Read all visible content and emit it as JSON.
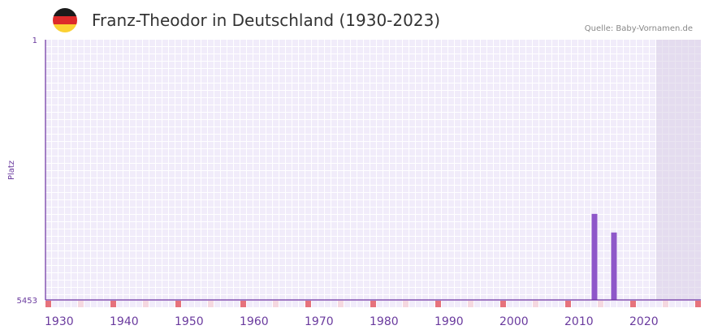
{
  "header": {
    "title": "Franz-Theodor in Deutschland (1930-2023)",
    "source": "Quelle: Baby-Vornamen.de",
    "flag_colors": [
      "#1a1a1a",
      "#dd2a2a",
      "#fbd133"
    ]
  },
  "chart_data": {
    "type": "bar",
    "title": "Franz-Theodor in Deutschland (1930-2023)",
    "xlabel": "",
    "ylabel": "Platz",
    "x_range": [
      1930,
      2030
    ],
    "y_range_rank": [
      1,
      5453
    ],
    "y_ticks": [
      "1",
      "5453"
    ],
    "x_ticks": [
      1930,
      1940,
      1950,
      1960,
      1970,
      1980,
      1990,
      2000,
      2010,
      2020
    ],
    "x_tick_labels": [
      "1930",
      "1940",
      "1950",
      "1960",
      "1970",
      "1980",
      "1990",
      "2000",
      "2010",
      "2020"
    ],
    "future_shaded_from": 2024,
    "series": [
      {
        "name": "Platz",
        "points": [
          {
            "year": 2014,
            "rank": 3650
          },
          {
            "year": 2017,
            "rank": 4040
          }
        ]
      }
    ],
    "grid": true,
    "colors": {
      "bar": "#8e57c9",
      "axis": "#6a2fa0",
      "decade_marker": "#e6727c",
      "half_marker": "#f5d8e0",
      "label": "#6a3a9e"
    }
  }
}
